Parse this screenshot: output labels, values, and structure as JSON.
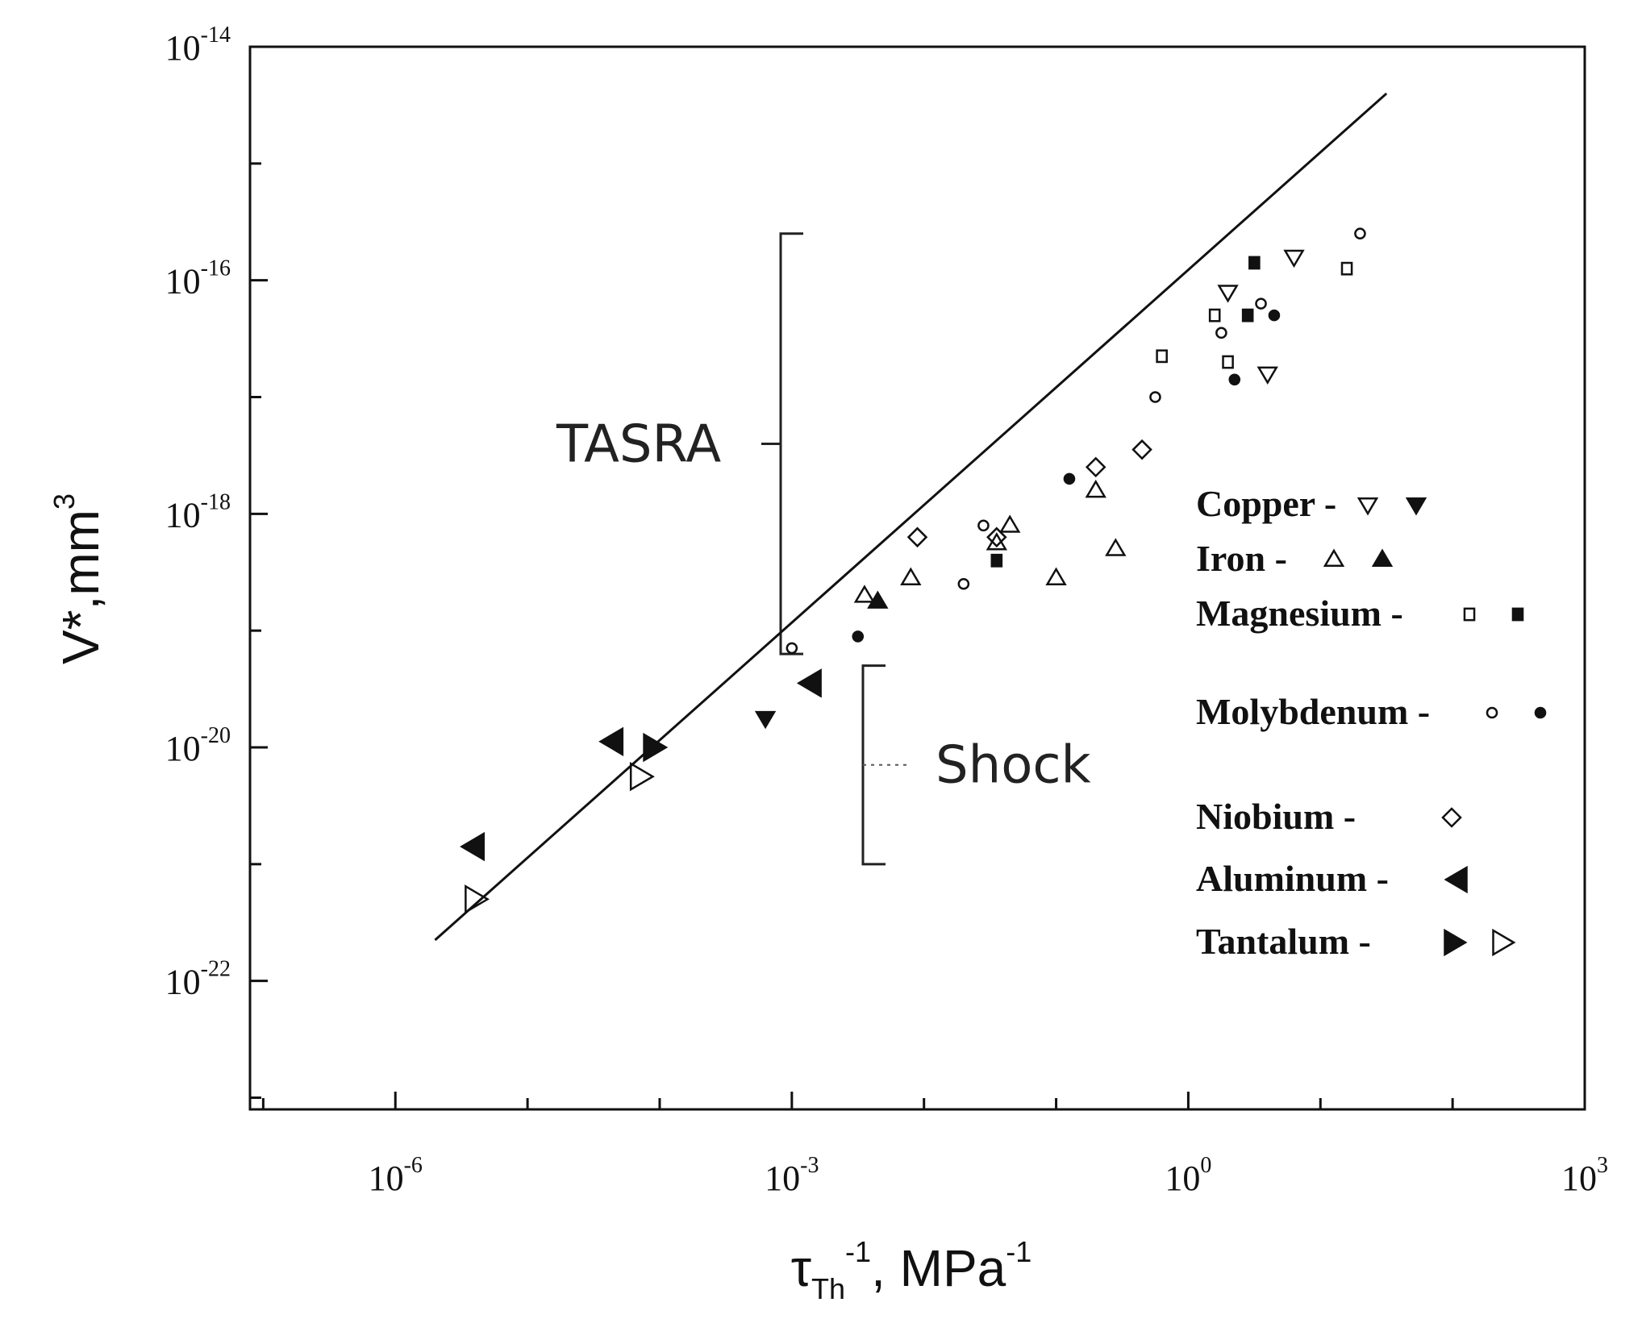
{
  "chart_data": {
    "type": "scatter",
    "title": "",
    "xlabel": {
      "main": "τ",
      "sub": "Th",
      "sup": "-1",
      "tail": ", MPa",
      "tail_sup": "-1"
    },
    "ylabel": {
      "main": "V*,mm",
      "sup": "3"
    },
    "x_scale": "log",
    "y_scale": "log",
    "xlim_log10": [
      -7.1,
      3
    ],
    "ylim_log10": [
      -23.1,
      -14
    ],
    "x_ticks": [
      {
        "base": "10",
        "exp": "-6",
        "log": -6
      },
      {
        "base": "10",
        "exp": "-3",
        "log": -3
      },
      {
        "base": "10",
        "exp": "0",
        "log": 0
      },
      {
        "base": "10",
        "exp": "3",
        "log": 3
      }
    ],
    "y_ticks": [
      {
        "base": "10",
        "exp": "-14",
        "log": -14
      },
      {
        "base": "10",
        "exp": "-16",
        "log": -16
      },
      {
        "base": "10",
        "exp": "-18",
        "log": -18
      },
      {
        "base": "10",
        "exp": "-20",
        "log": -20
      },
      {
        "base": "10",
        "exp": "-22",
        "log": -22
      }
    ],
    "fit_line_log10": {
      "x": [
        -5.7,
        1.5
      ],
      "y": [
        -21.65,
        -14.4
      ]
    },
    "annotations": [
      {
        "text": "TASRA",
        "y_range_log10": [
          -19.2,
          -15.6
        ]
      },
      {
        "text": "Shock",
        "y_range_log10": [
          -21.0,
          -19.3
        ]
      }
    ],
    "series": [
      {
        "name": "Copper",
        "symbol": "triangle-down-open",
        "points_log10": [
          [
            0.6,
            -16.8
          ],
          [
            0.3,
            -16.1
          ],
          [
            0.8,
            -15.8
          ]
        ]
      },
      {
        "name": "Copper",
        "symbol": "triangle-down-filled",
        "points_log10": [
          [
            -3.2,
            -19.75
          ]
        ]
      },
      {
        "name": "Iron",
        "symbol": "triangle-up-open",
        "points_log10": [
          [
            -2.45,
            -18.7
          ],
          [
            -2.1,
            -18.55
          ],
          [
            -1.0,
            -18.55
          ],
          [
            -0.7,
            -17.8
          ],
          [
            -1.45,
            -18.25
          ],
          [
            -1.35,
            -18.1
          ],
          [
            -0.55,
            -18.3
          ]
        ]
      },
      {
        "name": "Iron",
        "symbol": "triangle-up-filled",
        "points_log10": [
          [
            -2.35,
            -18.75
          ]
        ]
      },
      {
        "name": "Magnesium",
        "symbol": "square-open",
        "points_log10": [
          [
            0.3,
            -16.7
          ],
          [
            -0.2,
            -16.65
          ],
          [
            1.2,
            -15.9
          ],
          [
            0.2,
            -16.3
          ]
        ]
      },
      {
        "name": "Magnesium",
        "symbol": "square-filled",
        "points_log10": [
          [
            0.5,
            -15.85
          ],
          [
            0.45,
            -16.3
          ],
          [
            -1.45,
            -18.4
          ]
        ]
      },
      {
        "name": "Molybdenum",
        "symbol": "circle-open",
        "points_log10": [
          [
            -3.0,
            -19.15
          ],
          [
            -1.7,
            -18.6
          ],
          [
            -1.55,
            -18.1
          ],
          [
            -0.25,
            -17.0
          ],
          [
            0.25,
            -16.45
          ],
          [
            0.55,
            -16.2
          ],
          [
            1.3,
            -15.6
          ]
        ]
      },
      {
        "name": "Molybdenum",
        "symbol": "circle-filled",
        "points_log10": [
          [
            -2.5,
            -19.05
          ],
          [
            -0.9,
            -17.7
          ],
          [
            0.35,
            -16.85
          ],
          [
            0.65,
            -16.3
          ]
        ]
      },
      {
        "name": "Niobium",
        "symbol": "diamond-open",
        "points_log10": [
          [
            -2.05,
            -18.2
          ],
          [
            -0.35,
            -17.45
          ],
          [
            -0.7,
            -17.6
          ],
          [
            -1.45,
            -18.2
          ]
        ]
      },
      {
        "name": "Aluminum",
        "symbol": "triangle-left-filled",
        "points_log10": [
          [
            -2.85,
            -19.45
          ],
          [
            -4.35,
            -19.95
          ],
          [
            -5.4,
            -20.85
          ]
        ]
      },
      {
        "name": "Tantalum",
        "symbol": "triangle-right-filled",
        "points_log10": [
          [
            -4.05,
            -20.0
          ]
        ]
      },
      {
        "name": "Tantalum",
        "symbol": "triangle-right-open",
        "points_log10": [
          [
            -4.15,
            -20.25
          ],
          [
            -5.4,
            -21.3
          ]
        ]
      }
    ],
    "legend": [
      {
        "label": "Copper -",
        "symbols": [
          "triangle-down-open",
          "triangle-down-filled"
        ]
      },
      {
        "label": "Iron -",
        "symbols": [
          "triangle-up-open",
          "triangle-up-filled"
        ]
      },
      {
        "label": "Magnesium -",
        "symbols": [
          "square-open",
          "square-filled"
        ]
      },
      {
        "label": "Molybdenum -",
        "symbols": [
          "circle-open",
          "circle-filled"
        ]
      },
      {
        "label": "Niobium -",
        "symbols": [
          "diamond-open"
        ]
      },
      {
        "label": "Aluminum -",
        "symbols": [
          "triangle-left-filled"
        ]
      },
      {
        "label": "Tantalum -",
        "symbols": [
          "triangle-right-filled",
          "triangle-right-open"
        ]
      }
    ],
    "legend_position": "right",
    "grid": false
  }
}
